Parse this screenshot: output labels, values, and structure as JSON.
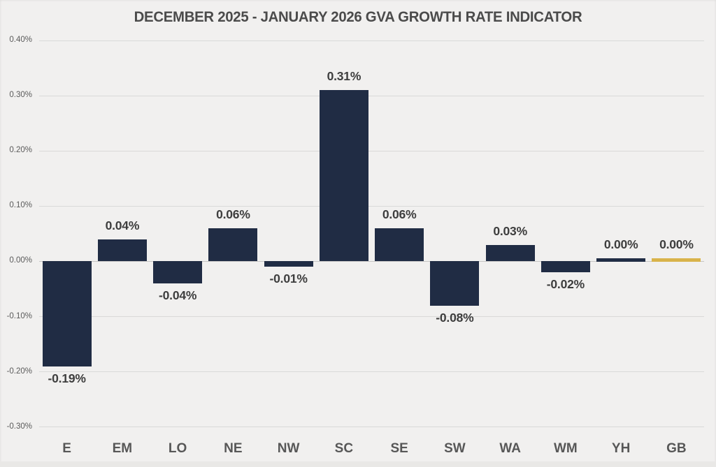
{
  "title": "DECEMBER 2025 - JANUARY 2026 GVA GROWTH RATE INDICATOR",
  "chart_data": {
    "type": "bar",
    "title": "DECEMBER 2025 - JANUARY 2026 GVA GROWTH RATE INDICATOR",
    "categories": [
      "E",
      "EM",
      "LO",
      "NE",
      "NW",
      "SC",
      "SE",
      "SW",
      "WA",
      "WM",
      "YH",
      "GB"
    ],
    "values": [
      -0.19,
      0.04,
      -0.04,
      0.06,
      -0.01,
      0.31,
      0.06,
      -0.08,
      0.03,
      -0.02,
      0.0,
      0.0
    ],
    "data_labels": [
      "-0.19%",
      "0.04%",
      "-0.04%",
      "0.06%",
      "-0.01%",
      "0.31%",
      "0.06%",
      "-0.08%",
      "0.03%",
      "-0.02%",
      "0.00%",
      "0.00%"
    ],
    "xlabel": "",
    "ylabel": "",
    "ylim": [
      -0.3,
      0.4
    ],
    "yticks": [
      0.4,
      0.3,
      0.2,
      0.1,
      0.0,
      -0.1,
      -0.2,
      -0.3
    ],
    "ytick_labels": [
      "0.40%",
      "0.30%",
      "0.20%",
      "0.10%",
      "0.00%",
      "-0.10%",
      "-0.20%",
      "-0.30%"
    ],
    "grid": true,
    "legend": false,
    "bar_color_default": "#202C44",
    "bar_color_highlight": "#D9B34A",
    "highlight_category": "GB",
    "bar_colors": [
      "#202C44",
      "#202C44",
      "#202C44",
      "#202C44",
      "#202C44",
      "#202C44",
      "#202C44",
      "#202C44",
      "#202C44",
      "#202C44",
      "#202C44",
      "#D9B34A"
    ]
  },
  "colors": {
    "background": "#F1F0EF",
    "gridline": "#D9D9D8",
    "zero_line": "#C6C6C5",
    "title_text": "#4B4B4B",
    "axis_tick_text": "#5A5A5A",
    "category_text": "#575757",
    "data_label_text": "#3E3E3E"
  }
}
